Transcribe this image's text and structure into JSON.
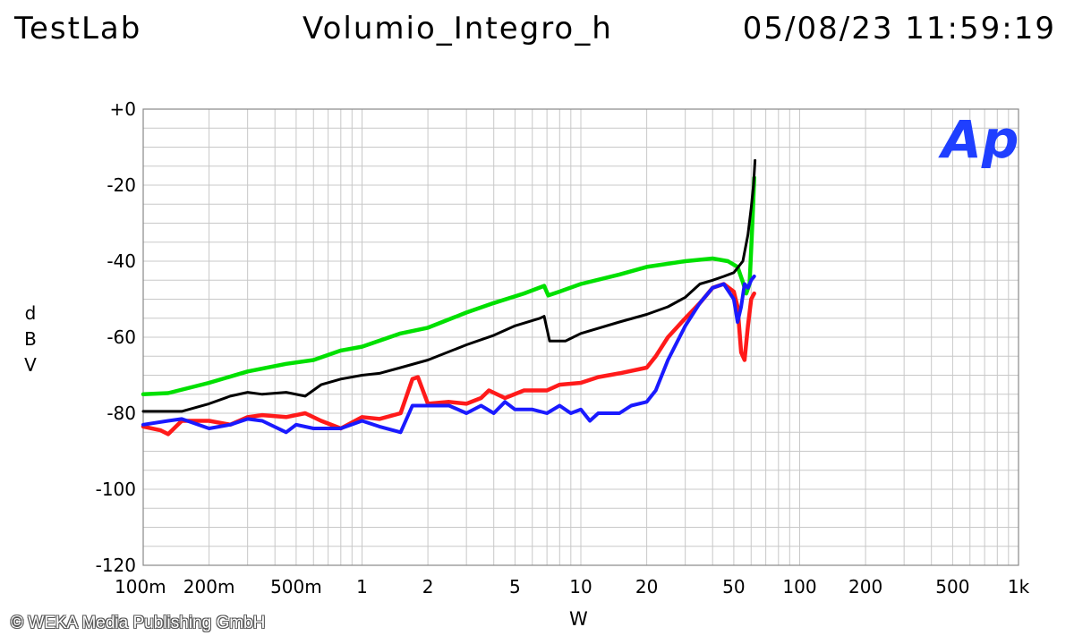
{
  "header": {
    "left": "TestLab",
    "center": "Volumio_Integro_h",
    "right": "05/08/23 11:59:19"
  },
  "logo_text": "Ap",
  "copyright": "© WEKA Media Publishing GmbH",
  "colors": {
    "logo": "#1f3fff",
    "grid": "#c8c8c8",
    "axis": "#888888"
  },
  "chart_data": {
    "type": "line",
    "xscale": "log",
    "xlim": [
      0.1,
      1000
    ],
    "ylim": [
      -120,
      0
    ],
    "ylabel": "dBV",
    "xlabel": "W",
    "ylabel_letters": [
      "d",
      "B",
      "V"
    ],
    "xticks": [
      {
        "v": 0.1,
        "label": "100m"
      },
      {
        "v": 0.2,
        "label": "200m"
      },
      {
        "v": 0.5,
        "label": "500m"
      },
      {
        "v": 1,
        "label": "1"
      },
      {
        "v": 2,
        "label": "2"
      },
      {
        "v": 5,
        "label": "5"
      },
      {
        "v": 10,
        "label": "10"
      },
      {
        "v": 20,
        "label": "20"
      },
      {
        "v": 50,
        "label": "50"
      },
      {
        "v": 100,
        "label": "100"
      },
      {
        "v": 200,
        "label": "200"
      },
      {
        "v": 500,
        "label": "500"
      },
      {
        "v": 1000,
        "label": "1k"
      }
    ],
    "yticks": [
      {
        "v": 0,
        "label": "+0"
      },
      {
        "v": -20,
        "label": "-20"
      },
      {
        "v": -40,
        "label": "-40"
      },
      {
        "v": -60,
        "label": "-60"
      },
      {
        "v": -80,
        "label": "-80"
      },
      {
        "v": -100,
        "label": "-100"
      },
      {
        "v": -120,
        "label": "-120"
      }
    ],
    "grid": true,
    "series": [
      {
        "color": "#00e000",
        "width": 4.5,
        "points": [
          [
            0.1,
            -75
          ],
          [
            0.13,
            -74.7
          ],
          [
            0.2,
            -72
          ],
          [
            0.3,
            -69
          ],
          [
            0.45,
            -67
          ],
          [
            0.6,
            -66
          ],
          [
            0.8,
            -63.5
          ],
          [
            1.0,
            -62.5
          ],
          [
            1.5,
            -59
          ],
          [
            2,
            -57.5
          ],
          [
            3,
            -53.5
          ],
          [
            4,
            -51
          ],
          [
            5.5,
            -48.5
          ],
          [
            6.8,
            -46.5
          ],
          [
            7.1,
            -49
          ],
          [
            8,
            -48
          ],
          [
            10,
            -46
          ],
          [
            15,
            -43.5
          ],
          [
            20,
            -41.5
          ],
          [
            30,
            -40
          ],
          [
            40,
            -39.3
          ],
          [
            47,
            -40
          ],
          [
            52,
            -41.5
          ],
          [
            55,
            -45.5
          ],
          [
            57,
            -48.5
          ],
          [
            59,
            -46
          ],
          [
            60,
            -37
          ],
          [
            61,
            -28
          ],
          [
            62,
            -18
          ]
        ]
      },
      {
        "color": "#000000",
        "width": 3,
        "points": [
          [
            0.1,
            -79.5
          ],
          [
            0.15,
            -79.5
          ],
          [
            0.2,
            -77.5
          ],
          [
            0.25,
            -75.5
          ],
          [
            0.3,
            -74.5
          ],
          [
            0.35,
            -75
          ],
          [
            0.45,
            -74.5
          ],
          [
            0.55,
            -75.5
          ],
          [
            0.65,
            -72.5
          ],
          [
            0.8,
            -71
          ],
          [
            1.0,
            -70
          ],
          [
            1.2,
            -69.5
          ],
          [
            1.5,
            -68
          ],
          [
            2,
            -66
          ],
          [
            3,
            -62
          ],
          [
            4,
            -59.5
          ],
          [
            5,
            -57
          ],
          [
            6.5,
            -55
          ],
          [
            6.8,
            -54.5
          ],
          [
            7.2,
            -61
          ],
          [
            8.5,
            -61
          ],
          [
            10,
            -59
          ],
          [
            15,
            -56
          ],
          [
            20,
            -54
          ],
          [
            25,
            -52
          ],
          [
            30,
            -49.5
          ],
          [
            35,
            -46
          ],
          [
            40,
            -45
          ],
          [
            45,
            -44
          ],
          [
            50,
            -43
          ],
          [
            55,
            -40
          ],
          [
            58,
            -33
          ],
          [
            60,
            -26
          ],
          [
            61.5,
            -20
          ],
          [
            62.5,
            -13.5
          ]
        ]
      },
      {
        "color": "#ff1a1a",
        "width": 4.5,
        "points": [
          [
            0.1,
            -83.5
          ],
          [
            0.12,
            -84.5
          ],
          [
            0.13,
            -85.5
          ],
          [
            0.15,
            -82
          ],
          [
            0.2,
            -82
          ],
          [
            0.25,
            -83
          ],
          [
            0.3,
            -81
          ],
          [
            0.35,
            -80.5
          ],
          [
            0.45,
            -81
          ],
          [
            0.55,
            -80
          ],
          [
            0.65,
            -82
          ],
          [
            0.8,
            -84
          ],
          [
            1.0,
            -81
          ],
          [
            1.2,
            -81.5
          ],
          [
            1.5,
            -80
          ],
          [
            1.7,
            -71
          ],
          [
            1.8,
            -70.5
          ],
          [
            2,
            -77.5
          ],
          [
            2.5,
            -77
          ],
          [
            3,
            -77.5
          ],
          [
            3.5,
            -76
          ],
          [
            3.8,
            -74
          ],
          [
            4.5,
            -76
          ],
          [
            5.5,
            -74
          ],
          [
            7,
            -74
          ],
          [
            8,
            -72.5
          ],
          [
            10,
            -72
          ],
          [
            12,
            -70.5
          ],
          [
            15,
            -69.5
          ],
          [
            20,
            -68
          ],
          [
            22,
            -65
          ],
          [
            25,
            -60
          ],
          [
            30,
            -55
          ],
          [
            35,
            -51
          ],
          [
            40,
            -47
          ],
          [
            45,
            -46
          ],
          [
            50,
            -48
          ],
          [
            52,
            -52
          ],
          [
            54,
            -64
          ],
          [
            56,
            -66
          ],
          [
            58,
            -57
          ],
          [
            60,
            -50
          ],
          [
            62,
            -48.5
          ]
        ]
      },
      {
        "color": "#1a1aff",
        "width": 4,
        "points": [
          [
            0.1,
            -83
          ],
          [
            0.13,
            -82
          ],
          [
            0.15,
            -81.5
          ],
          [
            0.2,
            -84
          ],
          [
            0.25,
            -83
          ],
          [
            0.3,
            -81.5
          ],
          [
            0.35,
            -82
          ],
          [
            0.45,
            -85
          ],
          [
            0.5,
            -83
          ],
          [
            0.6,
            -84
          ],
          [
            0.8,
            -84
          ],
          [
            1.0,
            -82
          ],
          [
            1.2,
            -83.5
          ],
          [
            1.5,
            -85
          ],
          [
            1.7,
            -78
          ],
          [
            2,
            -78
          ],
          [
            2.5,
            -78
          ],
          [
            3,
            -80
          ],
          [
            3.5,
            -78
          ],
          [
            4,
            -80
          ],
          [
            4.5,
            -77
          ],
          [
            5,
            -79
          ],
          [
            6,
            -79
          ],
          [
            7,
            -80
          ],
          [
            8,
            -78
          ],
          [
            9,
            -80
          ],
          [
            10,
            -79
          ],
          [
            11,
            -82
          ],
          [
            12,
            -80
          ],
          [
            15,
            -80
          ],
          [
            17,
            -78
          ],
          [
            20,
            -77
          ],
          [
            22,
            -74
          ],
          [
            25,
            -66
          ],
          [
            30,
            -57
          ],
          [
            35,
            -51
          ],
          [
            40,
            -47
          ],
          [
            45,
            -46
          ],
          [
            50,
            -50
          ],
          [
            52,
            -56
          ],
          [
            54,
            -52
          ],
          [
            56,
            -46
          ],
          [
            58,
            -47
          ],
          [
            60,
            -45
          ],
          [
            62,
            -44
          ]
        ]
      }
    ]
  }
}
